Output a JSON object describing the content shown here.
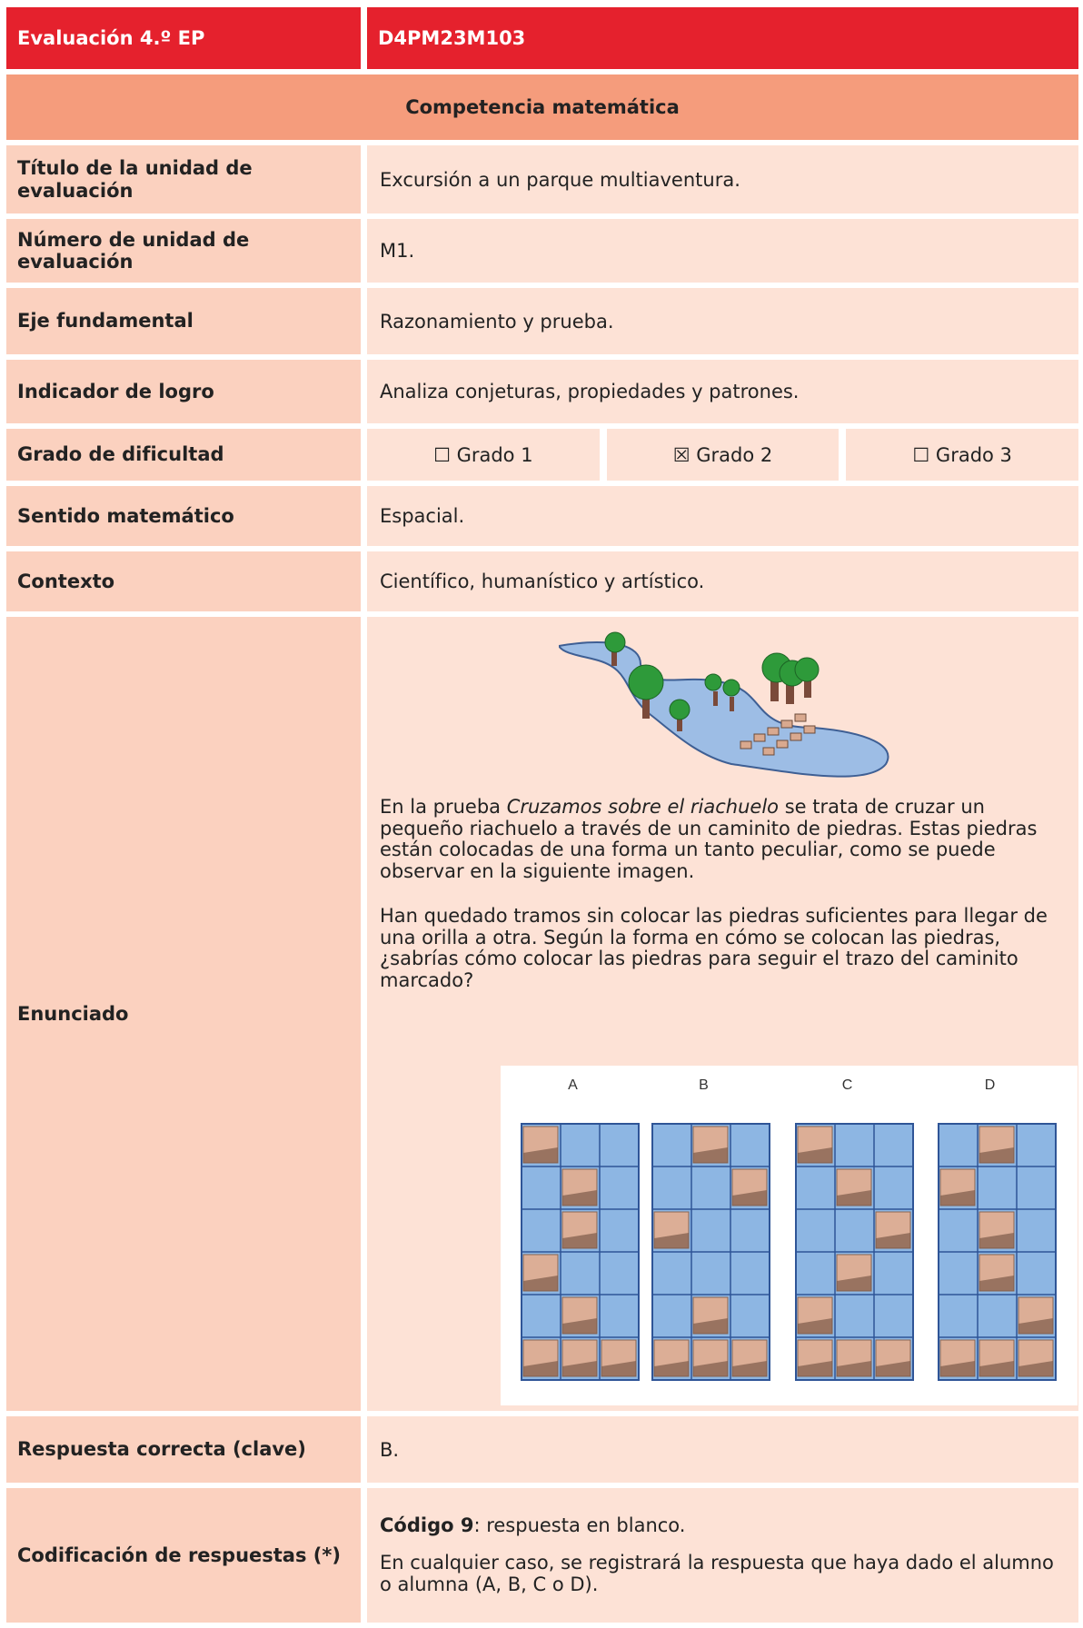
{
  "header": {
    "evaluation": "Evaluación 4.º EP",
    "code": "D4PM23M103"
  },
  "section": "Competencia matemática",
  "rows": [
    {
      "label": "Título de la unidad de evaluación",
      "value": "Excursión a un parque multiaventura."
    },
    {
      "label": "Número de unidad de evaluación",
      "value": "M1."
    },
    {
      "label": "Eje fundamental",
      "value": "Razonamiento y prueba."
    },
    {
      "label": "Indicador de logro",
      "value": "Analiza conjeturas, propiedades y patrones."
    }
  ],
  "difficulty": {
    "label": "Grado de dificultad",
    "options": [
      "☐ Grado 1",
      "☒ Grado 2",
      "☐ Grado 3"
    ]
  },
  "rows2": [
    {
      "label": "Sentido matemático",
      "value": "Espacial."
    },
    {
      "label": "Contexto",
      "value": "Científico, humanístico y artístico."
    }
  ],
  "statement": {
    "label": "Enunciado",
    "paragraph1": {
      "before": "En la prueba ",
      "italic": "Cruzamos sobre el riachuelo",
      "after": " se trata de cruzar un pequeño riachuelo a través de un caminito de piedras. Estas piedras están colocadas de una forma un tanto peculiar, como se puede observar en la siguiente imagen."
    },
    "paragraph2": "Han quedado tramos sin colocar las piedras suficientes para llegar de una orilla a otra. Según la forma en cómo se colocan las piedras, ¿sabrías cómo colocar las piedras para seguir el trazo del caminito marcado?",
    "options": [
      "A",
      "B",
      "C",
      "D"
    ]
  },
  "answer": {
    "label": "Respuesta correcta (clave)",
    "value": "B."
  },
  "coding": {
    "label": "Codificación de respuestas (*)",
    "code_bold": "Código 9",
    "code_rest": ": respuesta en blanco.",
    "note": "En cualquier caso, se registrará la respuesta que haya dado el alumno o alumna (A, B, C o D)."
  }
}
